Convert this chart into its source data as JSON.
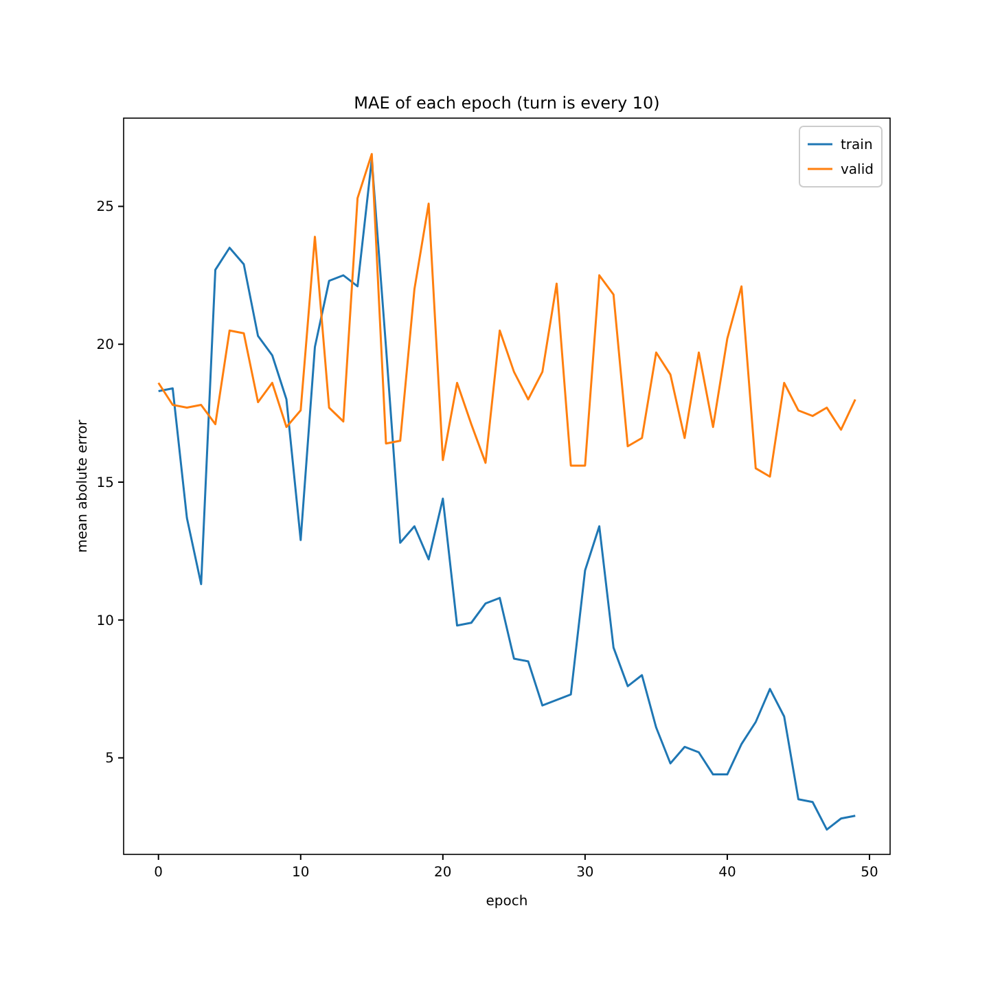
{
  "chart_data": {
    "type": "line",
    "title": "MAE of each epoch (turn is every 10)",
    "xlabel": "epoch",
    "ylabel": "mean abolute error",
    "x": [
      0,
      1,
      2,
      3,
      4,
      5,
      6,
      7,
      8,
      9,
      10,
      11,
      12,
      13,
      14,
      15,
      16,
      17,
      18,
      19,
      20,
      21,
      22,
      23,
      24,
      25,
      26,
      27,
      28,
      29,
      30,
      31,
      32,
      33,
      34,
      35,
      36,
      37,
      38,
      39,
      40,
      41,
      42,
      43,
      44,
      45,
      46,
      47,
      48,
      49
    ],
    "series": [
      {
        "name": "train",
        "color": "#1f77b4",
        "values": [
          18.3,
          18.4,
          13.7,
          11.3,
          22.7,
          23.5,
          22.9,
          20.3,
          19.6,
          18.0,
          12.9,
          19.9,
          22.3,
          22.5,
          22.1,
          26.7,
          19.9,
          12.8,
          13.4,
          12.2,
          14.4,
          9.8,
          9.9,
          10.6,
          10.8,
          8.6,
          8.5,
          6.9,
          7.1,
          7.3,
          11.8,
          13.4,
          9.0,
          7.6,
          8.0,
          6.1,
          4.8,
          5.4,
          5.2,
          4.4,
          4.4,
          5.5,
          6.3,
          7.5,
          6.5,
          3.5,
          3.4,
          2.4,
          2.8,
          2.9
        ]
      },
      {
        "name": "valid",
        "color": "#ff7f0e",
        "values": [
          18.6,
          17.8,
          17.7,
          17.8,
          17.1,
          20.5,
          20.4,
          17.9,
          18.6,
          17.0,
          17.6,
          23.9,
          17.7,
          17.2,
          25.3,
          26.9,
          16.4,
          16.5,
          22.0,
          25.1,
          15.8,
          18.6,
          17.1,
          15.7,
          20.5,
          19.0,
          18.0,
          19.0,
          22.2,
          15.6,
          15.6,
          22.5,
          21.8,
          16.3,
          16.6,
          19.7,
          18.9,
          16.6,
          19.7,
          17.0,
          20.2,
          22.1,
          15.5,
          15.2,
          18.6,
          17.6,
          17.4,
          17.7,
          16.9,
          18.0
        ]
      }
    ],
    "xlim": [
      -2.45,
      51.45
    ],
    "xticks": [
      0,
      10,
      20,
      30,
      40,
      50
    ],
    "ylim": [
      1.5,
      28.2
    ],
    "yticks": [
      5,
      10,
      15,
      20,
      25
    ],
    "legend": "top right",
    "grid": false,
    "marker": "none",
    "line_style": "solid"
  }
}
